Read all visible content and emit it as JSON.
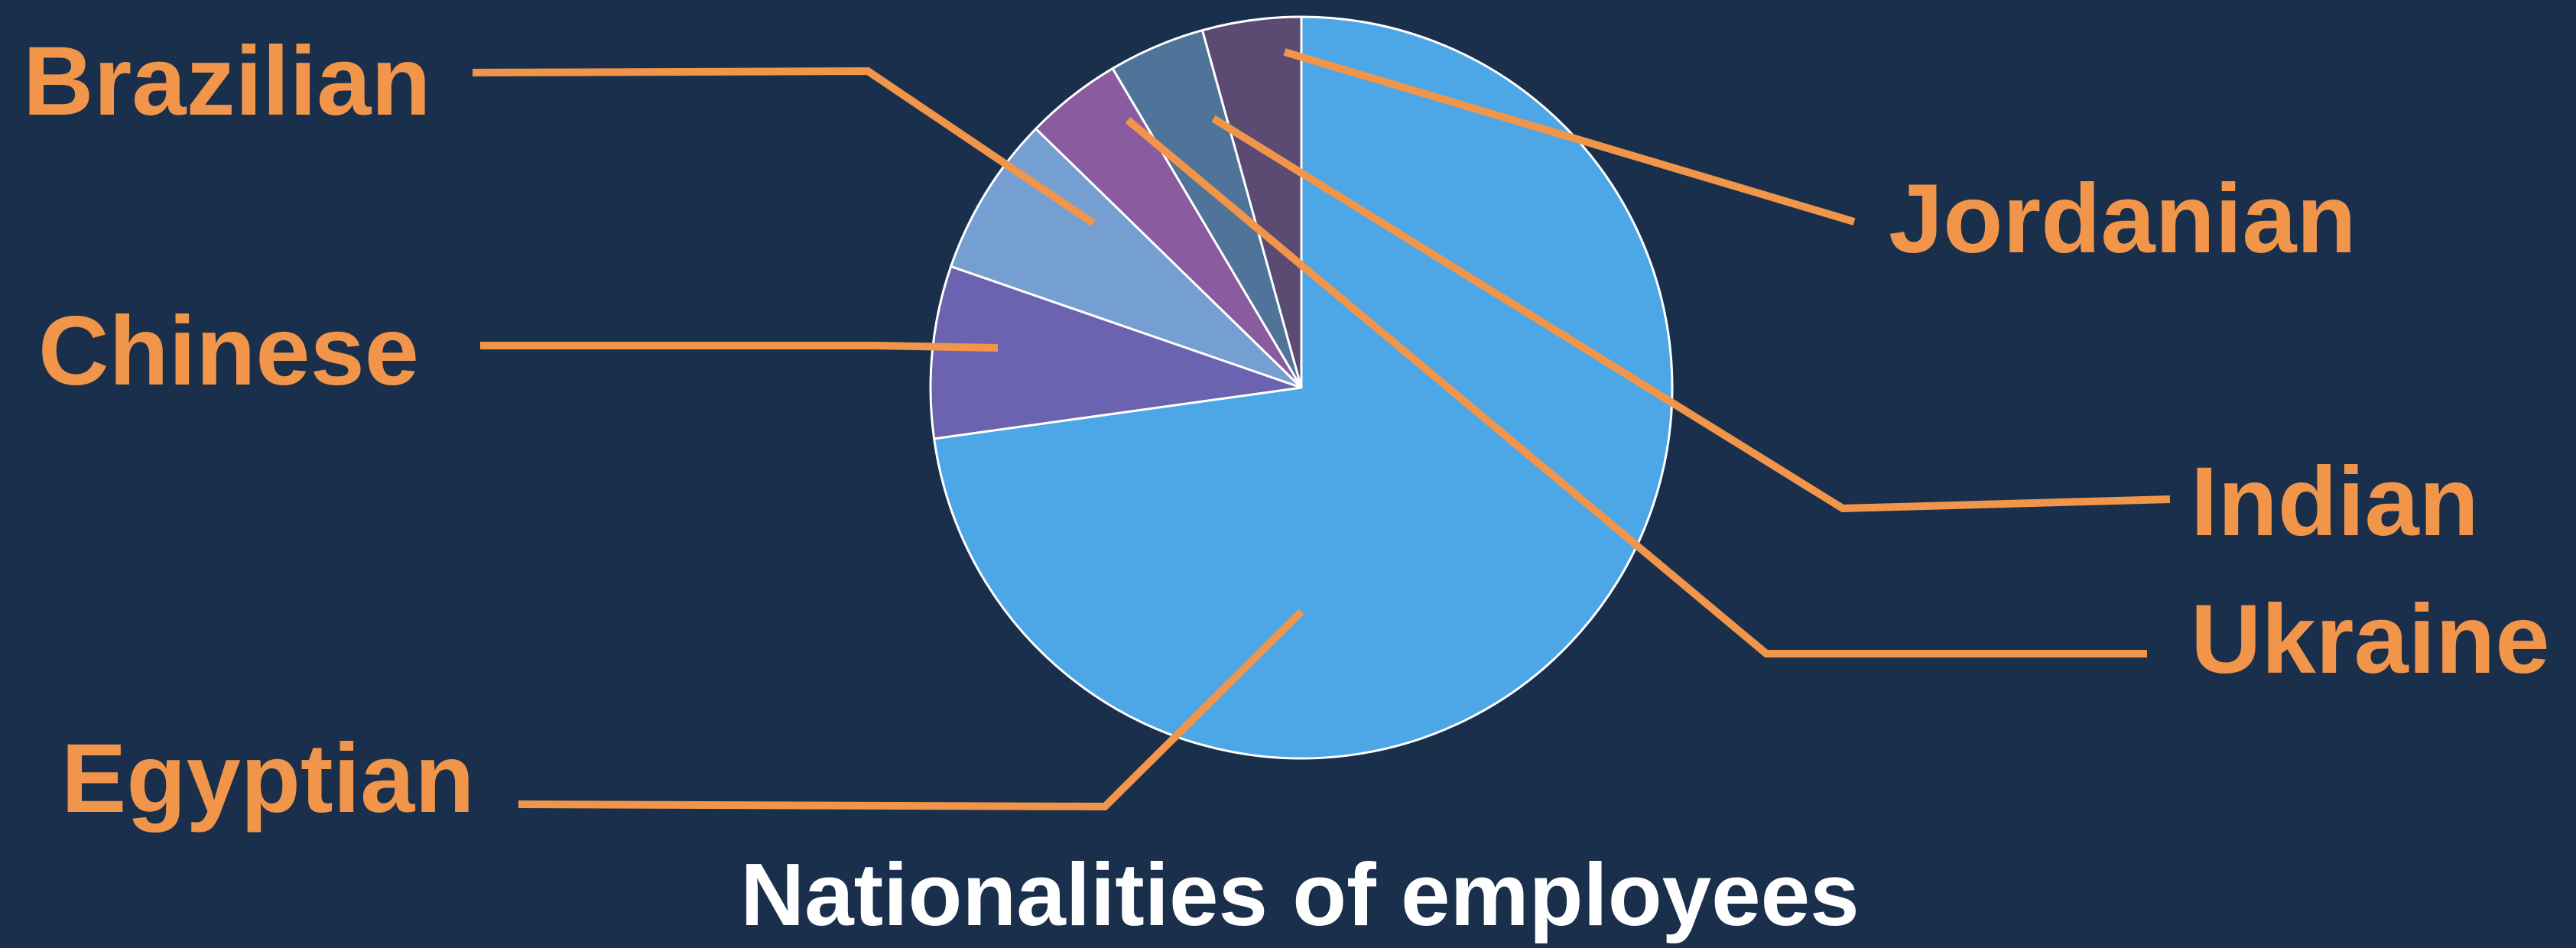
{
  "chart_data": {
    "type": "pie",
    "title": "Nationalities of employees",
    "categories": [
      "Egyptian",
      "Chinese",
      "Brazilian",
      "Ukraine",
      "Indian",
      "Jordanian"
    ],
    "values": [
      72.8,
      7.5,
      7.0,
      4.2,
      4.2,
      4.3
    ],
    "unit": "%",
    "start_angle": "12 o'clock, clockwise",
    "colors": {
      "Egyptian": "#4da6e6",
      "Chinese": "#6b63b0",
      "Brazilian": "#769fd1",
      "Ukraine": "#8b5ba0",
      "Indian": "#4f7399",
      "Jordanian": "#5b4a72"
    },
    "slice_border_color": "#ffffff",
    "label_color": "#f0954a",
    "title_color": "#ffffff",
    "background_color": "#1a2f4b",
    "legend": "none (labels with leader lines)"
  }
}
